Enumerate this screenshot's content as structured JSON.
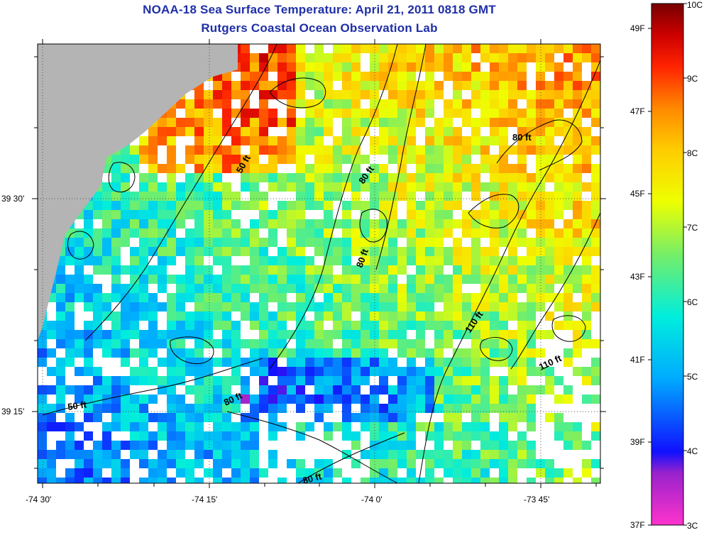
{
  "titles": {
    "line1": "NOAA-18 Sea Surface Temperature:  April 21, 2011 0818 GMT",
    "line2": "Rutgers Coastal Ocean Observation Lab"
  },
  "axes": {
    "x_labels": [
      "-74 30'",
      "-74 15'",
      "-74 0'",
      "-73 45'"
    ],
    "y_labels": [
      "39 30'",
      "39 15'"
    ]
  },
  "contour_labels": [
    "50 ft",
    "80 ft",
    "80 ft",
    "80 ft",
    "110 ft",
    "110 ft",
    "50 ft",
    "80 ft",
    "80 ft"
  ],
  "colorbar": {
    "celsius": [
      "10C",
      "9C",
      "8C",
      "7C",
      "6C",
      "5C",
      "4C",
      "3C"
    ],
    "fahrenheit": [
      "49F",
      "47F",
      "45F",
      "43F",
      "41F",
      "39F",
      "37F"
    ]
  },
  "colors": {
    "title": "#1f2fa8",
    "land": "#b4b4b4",
    "no_data": "#ffffff"
  }
}
